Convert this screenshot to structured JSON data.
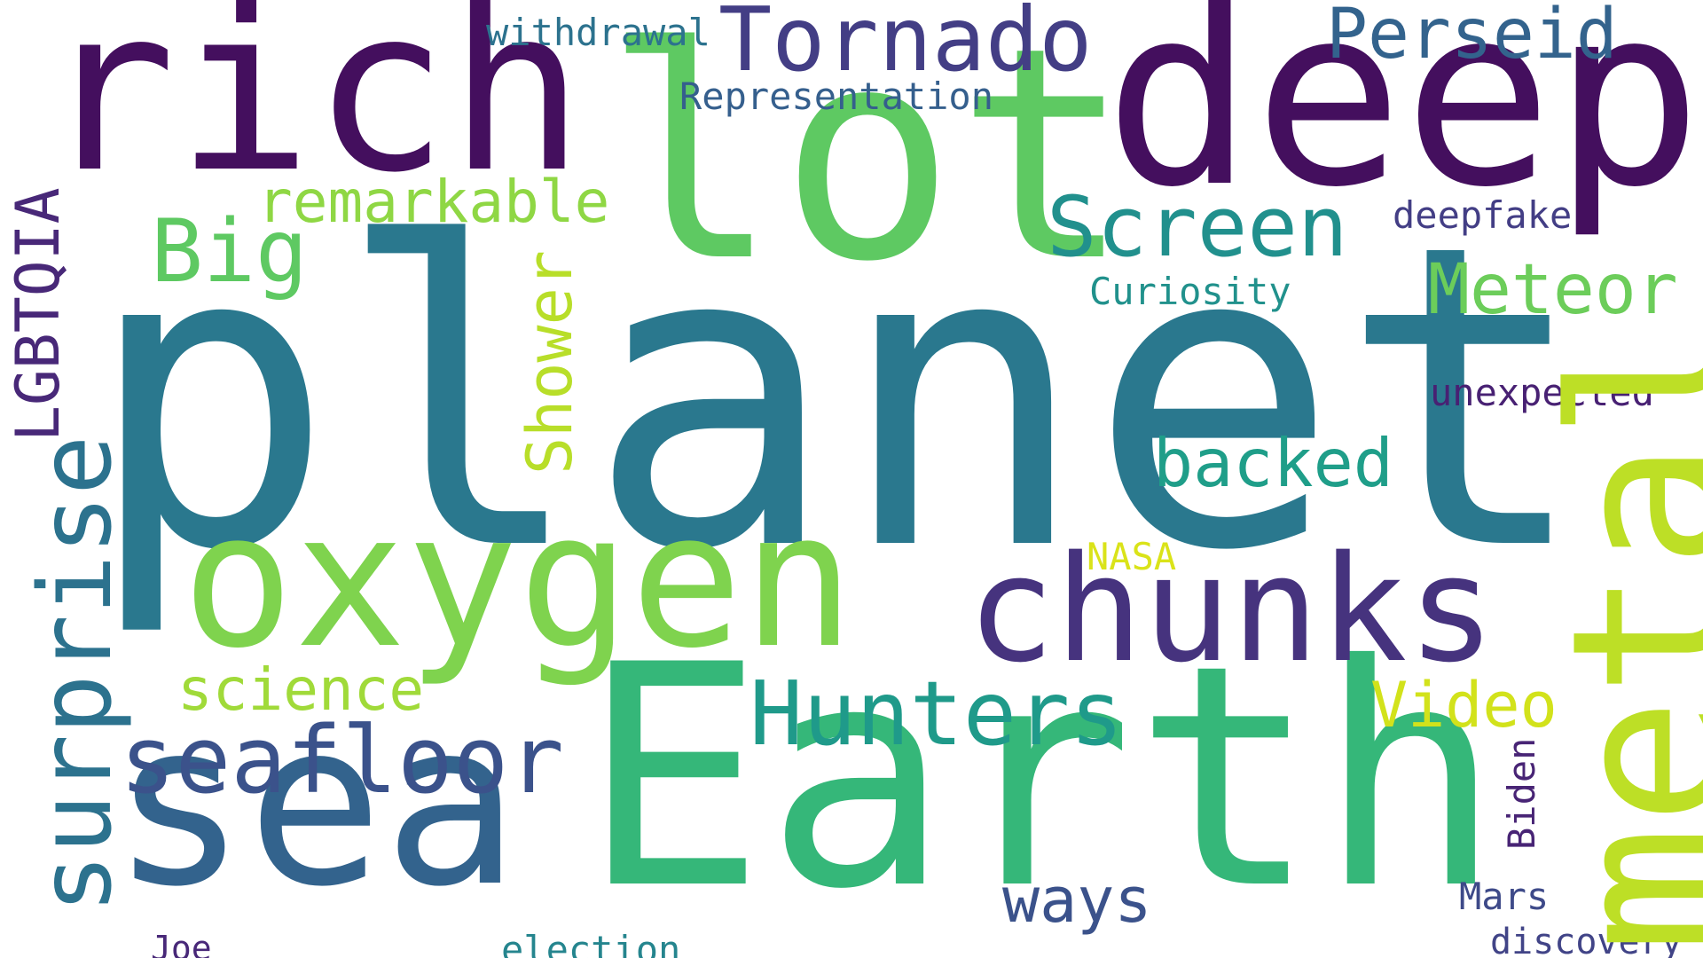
{
  "palette": {
    "background": "#ffffff",
    "dark_purple": "#440f5e",
    "indigo": "#433884",
    "slate_blue": "#3b528b",
    "steel_blue": "#2c6f8e",
    "teal": "#29798e",
    "sea_green": "#22a085",
    "green": "#35b779",
    "light_green": "#5ec962",
    "lime": "#7fd34e",
    "yellow_green": "#b5de2b",
    "yellow": "#d3e21b"
  },
  "words": [
    {
      "text": "planet",
      "orientation": "horizontal",
      "color": "#2a788e"
    },
    {
      "text": "Earth",
      "orientation": "horizontal",
      "color": "#35b779"
    },
    {
      "text": "lot",
      "orientation": "horizontal",
      "color": "#5ec962"
    },
    {
      "text": "deep",
      "orientation": "horizontal",
      "color": "#440f5e"
    },
    {
      "text": "rich",
      "orientation": "horizontal",
      "color": "#440f5e"
    },
    {
      "text": "sea",
      "orientation": "horizontal",
      "color": "#33638d"
    },
    {
      "text": "oxygen",
      "orientation": "horizontal",
      "color": "#7fd34e"
    },
    {
      "text": "metal",
      "orientation": "vertical",
      "color": "#bddf26"
    },
    {
      "text": "chunks",
      "orientation": "horizontal",
      "color": "#46337e"
    },
    {
      "text": "Tornado",
      "orientation": "horizontal",
      "color": "#433e85"
    },
    {
      "text": "surprise",
      "orientation": "vertical",
      "color": "#2c728e"
    },
    {
      "text": "seafloor",
      "orientation": "horizontal",
      "color": "#3b528b"
    },
    {
      "text": "Hunters",
      "orientation": "horizontal",
      "color": "#1f9a8a"
    },
    {
      "text": "Screen",
      "orientation": "horizontal",
      "color": "#21908d"
    },
    {
      "text": "Perseid",
      "orientation": "horizontal",
      "color": "#33638d"
    },
    {
      "text": "Big",
      "orientation": "horizontal",
      "color": "#5ec962"
    },
    {
      "text": "Meteor",
      "orientation": "horizontal",
      "color": "#6ccd5a"
    },
    {
      "text": "backed",
      "orientation": "horizontal",
      "color": "#1f9e89"
    },
    {
      "text": "remarkable",
      "orientation": "horizontal",
      "color": "#8fd744"
    },
    {
      "text": "LGBTQIA",
      "orientation": "vertical",
      "color": "#482878"
    },
    {
      "text": "Shower",
      "orientation": "vertical",
      "color": "#b8de29"
    },
    {
      "text": "science",
      "orientation": "horizontal",
      "color": "#a0da39"
    },
    {
      "text": "Video",
      "orientation": "horizontal",
      "color": "#d2e21b"
    },
    {
      "text": "ways",
      "orientation": "horizontal",
      "color": "#3b528b"
    },
    {
      "text": "withdrawal",
      "orientation": "horizontal",
      "color": "#2c728e"
    },
    {
      "text": "Representation",
      "orientation": "horizontal",
      "color": "#355f8d"
    },
    {
      "text": "deepfake",
      "orientation": "horizontal",
      "color": "#433e85"
    },
    {
      "text": "Curiosity",
      "orientation": "horizontal",
      "color": "#21918c"
    },
    {
      "text": "unexpected",
      "orientation": "horizontal",
      "color": "#482173"
    },
    {
      "text": "NASA",
      "orientation": "horizontal",
      "color": "#dae319"
    },
    {
      "text": "Biden",
      "orientation": "vertical",
      "color": "#482475"
    },
    {
      "text": "Mars",
      "orientation": "horizontal",
      "color": "#3e4a89"
    },
    {
      "text": "discovery",
      "orientation": "horizontal",
      "color": "#414487"
    },
    {
      "text": "Joe",
      "orientation": "horizontal",
      "color": "#482878"
    },
    {
      "text": "election",
      "orientation": "horizontal",
      "color": "#25858e"
    }
  ]
}
